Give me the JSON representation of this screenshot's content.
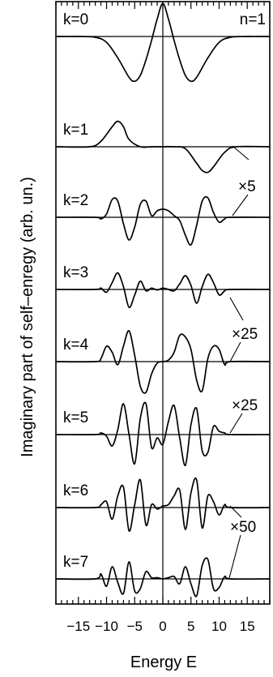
{
  "chart_data": {
    "type": "line",
    "title": "",
    "xlabel": "Energy E",
    "ylabel": "Imaginary part of self–enregy  (arb. un.)",
    "xlim": [
      -19,
      19
    ],
    "x_ticks": [
      -15,
      -10,
      -5,
      0,
      5,
      10,
      15
    ],
    "x_tick_labels": [
      "−15",
      "−10",
      "−5",
      "0",
      "5",
      "10",
      "15"
    ],
    "y_ticks": "none",
    "grid": false,
    "vertical_reference_line_at_x": 0,
    "annotation_top_right": "n=1",
    "scale_annotations": [
      {
        "text": "×5",
        "applies_to": "k=1"
      },
      {
        "text": "×25",
        "applies_to": "k=3, k=4"
      },
      {
        "text": "×25",
        "applies_to": "k=5"
      },
      {
        "text": "×50",
        "applies_to": "k=6, k=7"
      }
    ],
    "series": [
      {
        "name": "k=0",
        "x": [
          -19,
          -15,
          -12,
          -10,
          -8,
          -6,
          -5,
          -4,
          -3,
          -2,
          -1,
          0,
          1,
          2,
          3,
          4,
          5,
          6,
          8,
          10,
          12,
          15,
          19
        ],
        "y": [
          0,
          0,
          -0.02,
          -0.15,
          -0.55,
          -1.05,
          -1.15,
          -1.0,
          -0.6,
          -0.1,
          0.45,
          0.85,
          0.45,
          -0.1,
          -0.6,
          -1.0,
          -1.15,
          -1.05,
          -0.55,
          -0.15,
          -0.02,
          0,
          0
        ]
      },
      {
        "name": "k=1",
        "x": [
          -19,
          -13,
          -11,
          -9,
          -8,
          -7,
          -6,
          -4,
          -2,
          0,
          2,
          4,
          6,
          7,
          8,
          9,
          11,
          13,
          19
        ],
        "y": [
          0,
          0,
          0.15,
          0.55,
          0.7,
          0.55,
          0.2,
          0,
          0,
          0,
          0,
          -0.05,
          -0.45,
          -0.65,
          -0.7,
          -0.55,
          -0.15,
          0,
          0
        ]
      },
      {
        "name": "k=2",
        "x": [
          -19,
          -12,
          -11,
          -10,
          -9,
          -8,
          -7,
          -6,
          -5,
          -4,
          -3,
          -2,
          -1,
          0,
          1,
          2,
          3,
          4,
          5,
          6,
          7,
          8,
          9,
          10,
          11,
          12,
          19
        ],
        "y": [
          0,
          0,
          -0.05,
          0.1,
          0.55,
          0.5,
          -0.2,
          -0.7,
          -0.3,
          0.4,
          0.5,
          0.05,
          0.2,
          0.25,
          0.2,
          0.05,
          -0.1,
          -0.55,
          -0.85,
          -0.25,
          0.5,
          0.6,
          0.15,
          -0.15,
          -0.05,
          0,
          0
        ]
      },
      {
        "name": "k=3",
        "x": [
          -19,
          -12,
          -11,
          -10,
          -9,
          -8,
          -7,
          -6,
          -5,
          -4,
          -3,
          -2,
          -1,
          0,
          1,
          2,
          3,
          4,
          5,
          6,
          7,
          8,
          9,
          10,
          11,
          12,
          19
        ],
        "y": [
          0,
          0,
          0.05,
          -0.1,
          0.25,
          0.6,
          0.1,
          -0.65,
          -0.2,
          0.3,
          -0.05,
          0.05,
          -0.02,
          0.05,
          0.0,
          -0.05,
          0.2,
          0.5,
          0.15,
          -0.5,
          0.1,
          0.55,
          0.25,
          -0.2,
          -0.05,
          0,
          0
        ]
      },
      {
        "name": "k=4",
        "x": [
          -19,
          -12,
          -11,
          -10,
          -9,
          -8,
          -7,
          -6,
          -5,
          -4,
          -3,
          -2,
          -1,
          0,
          1,
          2,
          3,
          4,
          5,
          6,
          7,
          8,
          9,
          10,
          11,
          12,
          19
        ],
        "y": [
          0,
          0,
          0.1,
          0.5,
          0.3,
          -0.1,
          0.5,
          1.0,
          0.2,
          -0.8,
          -1.0,
          -0.4,
          -0.05,
          0,
          0.05,
          0.3,
          0.85,
          0.8,
          0.4,
          -0.6,
          -0.95,
          0.1,
          0.5,
          0.4,
          -0.1,
          0,
          0
        ]
      },
      {
        "name": "k=5",
        "x": [
          -19,
          -12,
          -11,
          -10,
          -9,
          -8,
          -7,
          -6,
          -5,
          -4,
          -3,
          -2,
          -1,
          0,
          1,
          2,
          3,
          4,
          5,
          6,
          7,
          8,
          9,
          10,
          11,
          12,
          19
        ],
        "y": [
          0,
          0,
          0.05,
          -0.05,
          -0.35,
          0.15,
          0.95,
          0.0,
          -0.9,
          0.5,
          0.95,
          -0.4,
          -0.1,
          -0.3,
          0.4,
          0.9,
          -0.1,
          -0.95,
          0.3,
          0.8,
          -0.5,
          -0.55,
          0.25,
          0.1,
          0.05,
          0,
          0
        ]
      },
      {
        "name": "k=6",
        "x": [
          -19,
          -12,
          -11,
          -10,
          -9,
          -8,
          -7,
          -6,
          -5,
          -4,
          -3,
          -2,
          -1,
          0,
          1,
          2,
          3,
          4,
          5,
          6,
          7,
          8,
          9,
          10,
          11,
          12,
          19
        ],
        "y": [
          0,
          0,
          0.1,
          0.2,
          -0.4,
          0.4,
          0.7,
          -0.8,
          0.1,
          0.95,
          -0.6,
          0.1,
          -0.05,
          0.05,
          0.1,
          0.4,
          0.6,
          -0.75,
          0.5,
          0.95,
          -0.7,
          0.4,
          0.2,
          -0.25,
          0.1,
          0,
          0
        ]
      },
      {
        "name": "k=7",
        "x": [
          -19,
          -12,
          -11,
          -10,
          -9,
          -8,
          -7,
          -6,
          -5,
          -4,
          -3,
          -2,
          -1,
          0,
          1,
          2,
          3,
          4,
          5,
          6,
          7,
          8,
          9,
          10,
          11,
          12,
          19
        ],
        "y": [
          0,
          0,
          0.2,
          -0.3,
          0.5,
          -0.15,
          -0.6,
          0.7,
          -0.5,
          -0.4,
          0.3,
          0.05,
          0.05,
          0,
          0.05,
          0.1,
          -0.2,
          0.5,
          -0.2,
          -0.7,
          0.55,
          0.8,
          -0.4,
          -0.35,
          0.1,
          0,
          0
        ]
      }
    ]
  }
}
